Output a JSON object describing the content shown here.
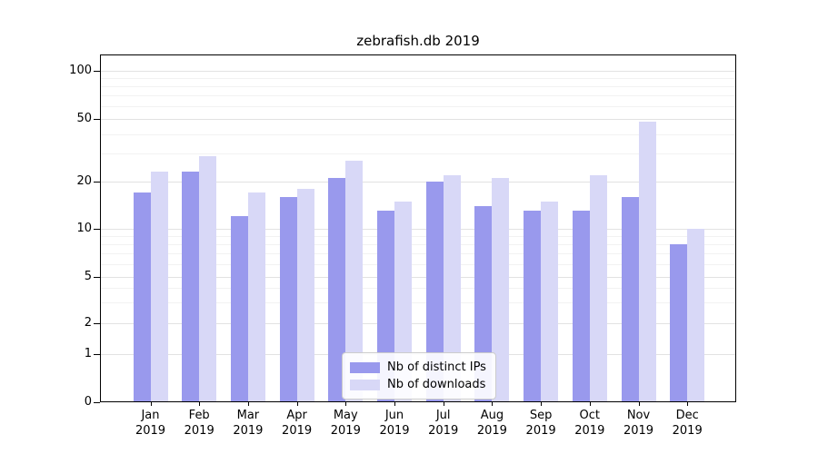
{
  "chart_data": {
    "type": "bar",
    "title": "zebrafish.db 2019",
    "year_label": "2019",
    "categories": [
      "Jan",
      "Feb",
      "Mar",
      "Apr",
      "May",
      "Jun",
      "Jul",
      "Aug",
      "Sep",
      "Oct",
      "Nov",
      "Dec"
    ],
    "series": [
      {
        "name": "Nb of distinct IPs",
        "color": "#9999ed",
        "values": [
          17,
          23,
          12,
          16,
          21,
          13,
          20,
          14,
          13,
          13,
          16,
          8
        ]
      },
      {
        "name": "Nb of downloads",
        "color": "#d8d8f7",
        "values": [
          23,
          29,
          17,
          18,
          27,
          15,
          22,
          21,
          15,
          22,
          48,
          10
        ]
      }
    ],
    "yticks": [
      0,
      1,
      2,
      5,
      10,
      20,
      50,
      100
    ],
    "minor_gridlines": [
      3,
      4,
      6,
      7,
      8,
      9,
      30,
      40,
      60,
      70,
      80,
      90
    ],
    "yscale": "symlog",
    "ylim": [
      0,
      130
    ],
    "grid": true,
    "legend_position": "lower center"
  }
}
